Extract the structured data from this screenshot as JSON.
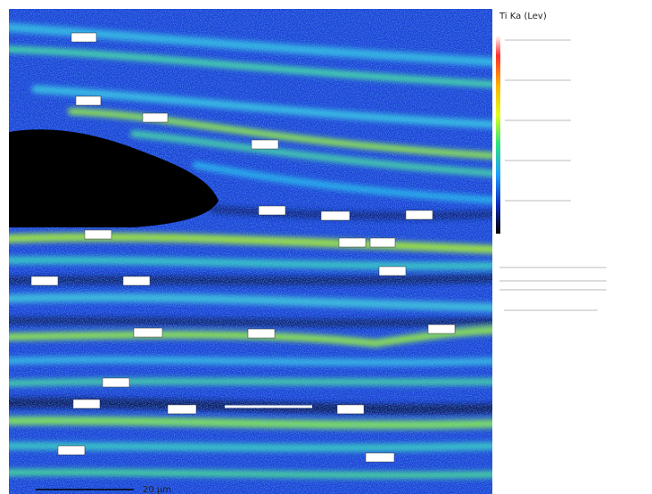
{
  "header": {
    "title": "Ti Ka (Lev)"
  },
  "scale_bar": {
    "label": "20 µm"
  }
}
